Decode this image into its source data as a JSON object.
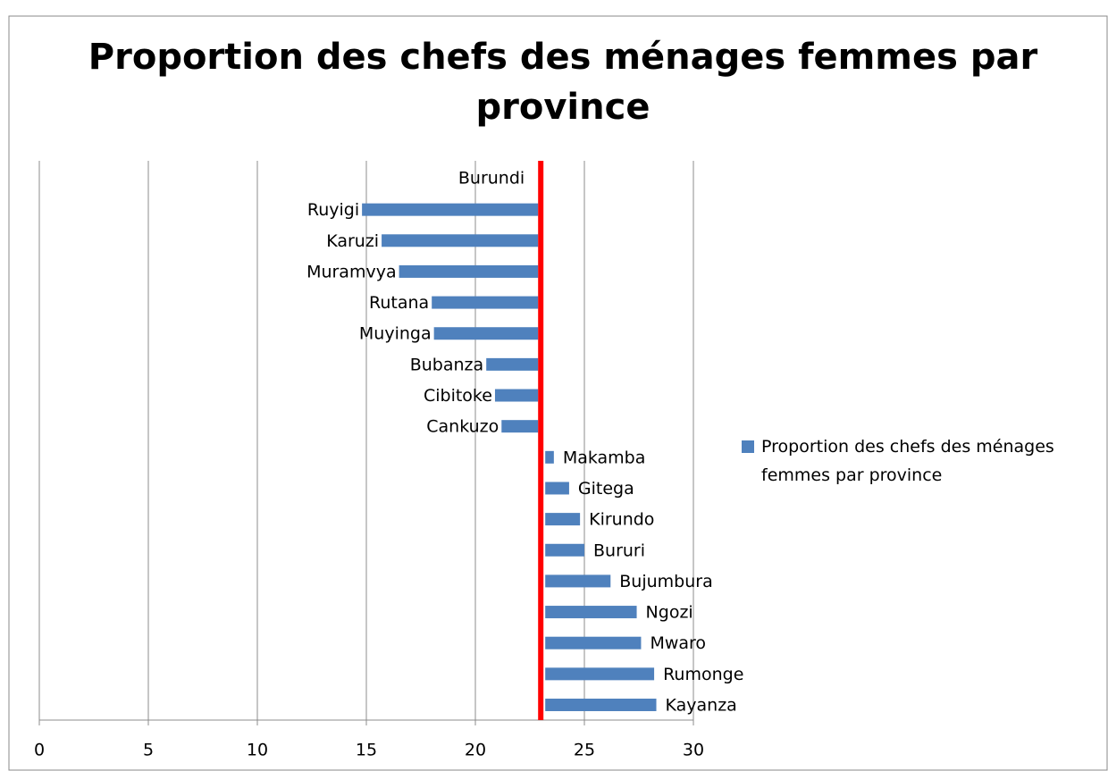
{
  "chart_data": {
    "type": "bar",
    "orientation": "horizontal",
    "title": "Proportion des chefs des ménages femmes par province",
    "categories": [
      "Burundi",
      "Ruyigi",
      "Karuzi",
      "Muramvya",
      "Rutana",
      "Muyinga",
      "Bubanza",
      "Cibitoke",
      "Cankuzo",
      "Makamba",
      "Gitega",
      "Kirundo",
      "Bururi",
      "Bujumbura",
      "Ngozi",
      "Mwaro",
      "Rumonge",
      "Kayanza"
    ],
    "series": [
      {
        "name": "Proportion des chefs des ménages femmes par province",
        "color": "#4f81bd",
        "values": [
          23.0,
          14.8,
          15.7,
          16.5,
          18.0,
          18.1,
          20.5,
          20.9,
          21.2,
          23.6,
          24.3,
          24.8,
          25.0,
          26.2,
          27.4,
          27.6,
          28.2,
          28.3
        ]
      }
    ],
    "reference_color": "#ff0000",
    "xlim": [
      0,
      30
    ],
    "xticks": [
      0,
      5,
      10,
      15,
      20,
      25,
      30
    ],
    "grid": true,
    "legend": "right"
  }
}
